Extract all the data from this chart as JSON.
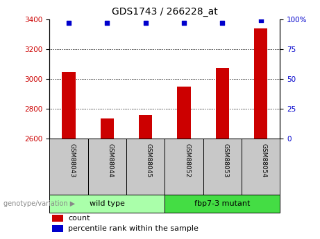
{
  "title": "GDS1743 / 266228_at",
  "samples": [
    "GSM88043",
    "GSM88044",
    "GSM88045",
    "GSM88052",
    "GSM88053",
    "GSM88054"
  ],
  "counts": [
    3045,
    2735,
    2760,
    2950,
    3075,
    3340
  ],
  "percentile_ranks": [
    97,
    97,
    97,
    97,
    97,
    99
  ],
  "ylim_left": [
    2600,
    3400
  ],
  "ylim_right": [
    0,
    100
  ],
  "yticks_left": [
    2600,
    2800,
    3000,
    3200,
    3400
  ],
  "yticks_right": [
    0,
    25,
    50,
    75,
    100
  ],
  "yticklabels_right": [
    "0",
    "25",
    "50",
    "75",
    "100%"
  ],
  "bar_color": "#cc0000",
  "dot_color": "#0000cc",
  "bar_width": 0.35,
  "group_label_prefix": "genotype/variation",
  "legend_count_label": "count",
  "legend_percentile_label": "percentile rank within the sample",
  "tick_label_color_left": "#cc0000",
  "tick_label_color_right": "#0000cc",
  "sample_box_color": "#c8c8c8",
  "group1_color": "#aaffaa",
  "group2_color": "#44dd44",
  "group1_label": "wild type",
  "group2_label": "fbp7-3 mutant"
}
